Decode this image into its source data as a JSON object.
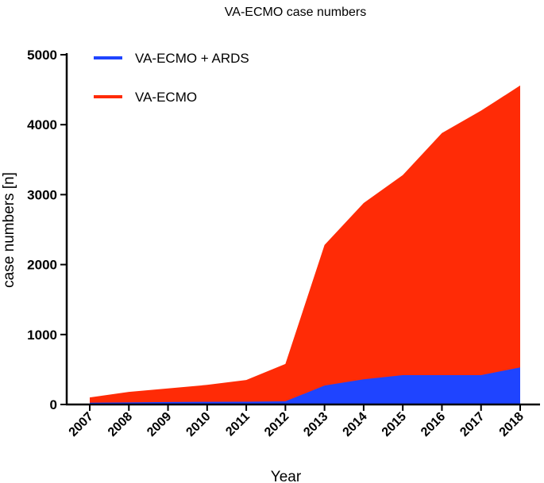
{
  "chart_data": {
    "type": "area",
    "title": "VA-ECMO case numbers",
    "xlabel": "Year",
    "ylabel": "case numbers [n]",
    "ylim": [
      0,
      5000
    ],
    "yticks": [
      0,
      1000,
      2000,
      3000,
      4000,
      5000
    ],
    "categories": [
      "2007",
      "2008",
      "2009",
      "2010",
      "2011",
      "2012",
      "2013",
      "2014",
      "2015",
      "2016",
      "2017",
      "2018"
    ],
    "series": [
      {
        "name": "VA-ECMO + ARDS",
        "color": "#1f44ff",
        "values": [
          25,
          30,
          35,
          38,
          40,
          45,
          270,
          360,
          420,
          420,
          420,
          530
        ]
      },
      {
        "name": "VA-ECMO",
        "color": "#ff2b06",
        "values": [
          100,
          180,
          230,
          280,
          350,
          580,
          2280,
          2880,
          3280,
          3880,
          4200,
          4560
        ]
      }
    ],
    "legend_position": "top-left",
    "grid": false
  }
}
